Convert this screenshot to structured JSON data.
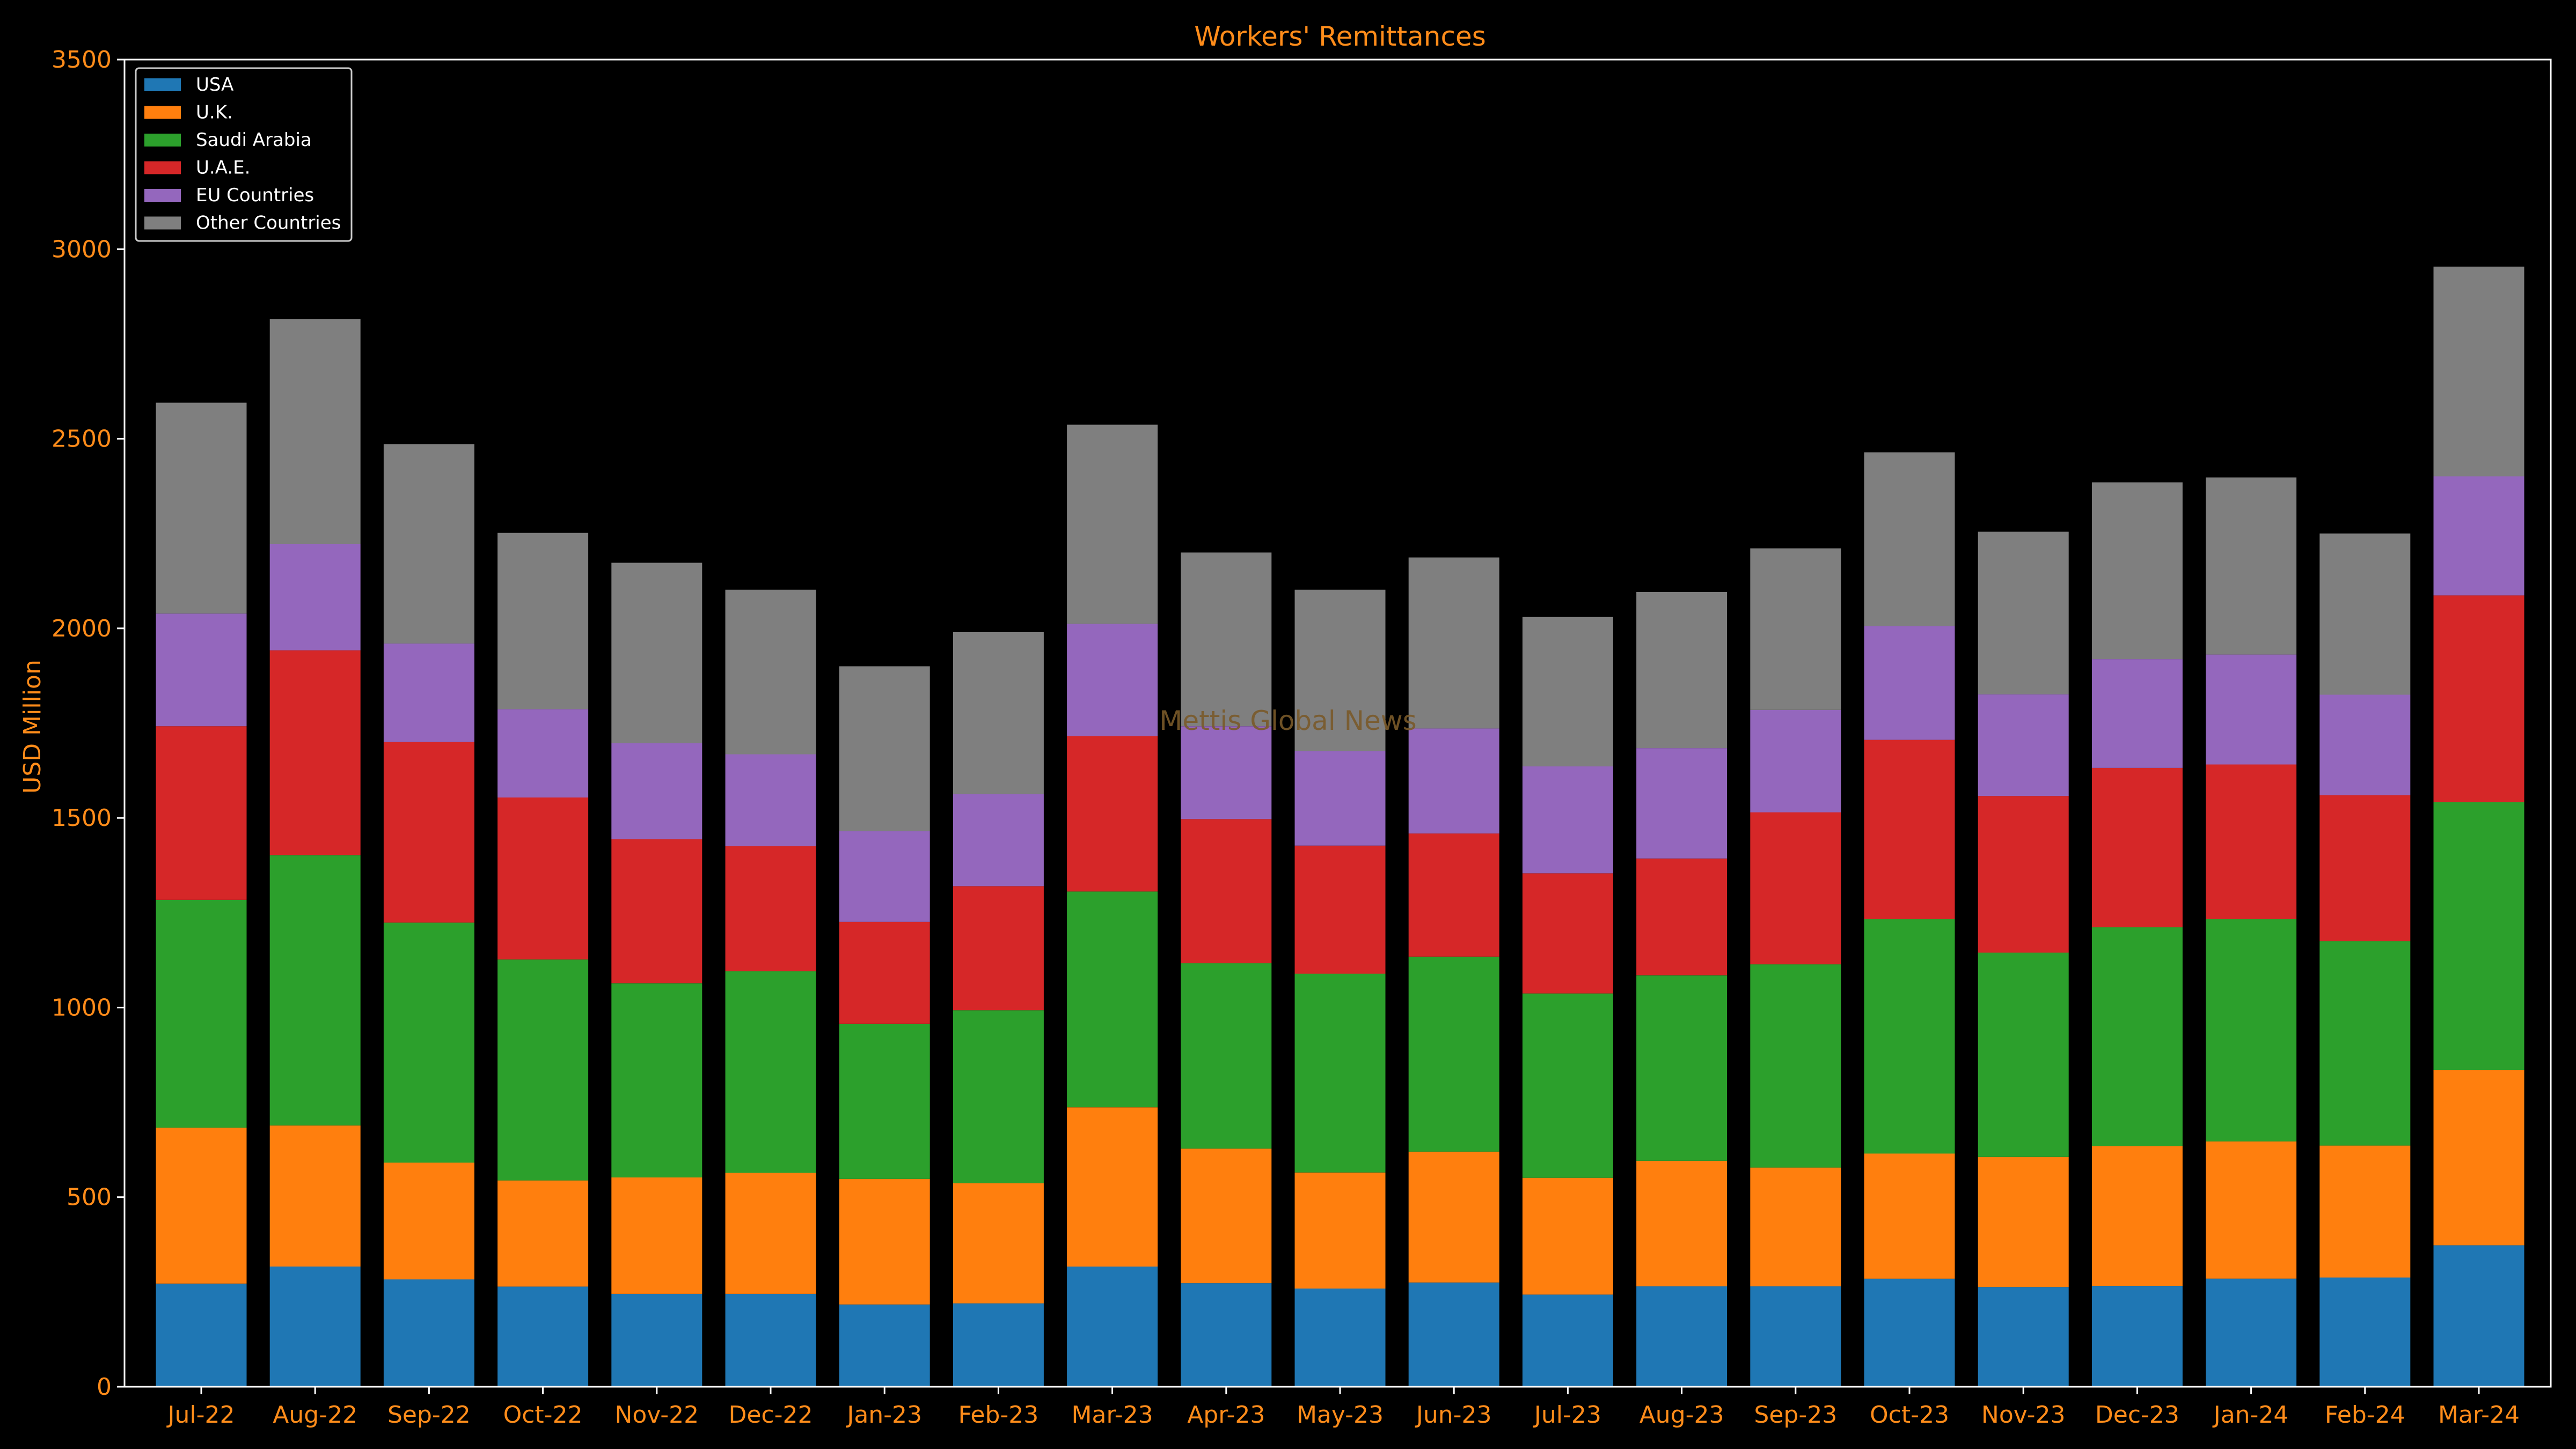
{
  "chart_data": {
    "type": "bar",
    "stacked": true,
    "title": "Workers' Remittances",
    "xlabel": "",
    "ylabel": "USD Million",
    "ylim": [
      0,
      3500
    ],
    "yticks": [
      0,
      500,
      1000,
      1500,
      2000,
      2500,
      3000,
      3500
    ],
    "grid": false,
    "legend_position": "top-left",
    "watermark": "Mettis Global News",
    "categories": [
      "Jul-22",
      "Aug-22",
      "Sep-22",
      "Oct-22",
      "Nov-22",
      "Dec-22",
      "Jan-23",
      "Feb-23",
      "Mar-23",
      "Apr-23",
      "May-23",
      "Jun-23",
      "Jul-23",
      "Aug-23",
      "Sep-23",
      "Oct-23",
      "Nov-23",
      "Dec-23",
      "Jan-24",
      "Feb-24",
      "Mar-24"
    ],
    "series": [
      {
        "name": "USA",
        "color": "#1f77b4",
        "values": [
          272,
          317,
          283,
          264,
          245,
          245,
          217,
          220,
          317,
          273,
          259,
          275,
          243,
          265,
          265,
          285,
          263,
          266,
          285,
          288,
          373
        ]
      },
      {
        "name": "U.K.",
        "color": "#ff7f0e",
        "values": [
          411,
          372,
          308,
          280,
          307,
          319,
          331,
          317,
          420,
          355,
          306,
          345,
          308,
          331,
          313,
          330,
          343,
          369,
          362,
          348,
          462
        ]
      },
      {
        "name": "Saudi Arabia",
        "color": "#2ca02c",
        "values": [
          601,
          713,
          633,
          583,
          512,
          532,
          409,
          456,
          569,
          489,
          524,
          514,
          486,
          489,
          536,
          619,
          539,
          577,
          587,
          539,
          707
        ]
      },
      {
        "name": "U.A.E.",
        "color": "#d62728",
        "values": [
          458,
          540,
          476,
          427,
          380,
          330,
          269,
          327,
          410,
          380,
          338,
          325,
          317,
          308,
          401,
          472,
          413,
          420,
          407,
          385,
          545
        ]
      },
      {
        "name": "EU Countries",
        "color": "#9467bd",
        "values": [
          297,
          280,
          260,
          233,
          253,
          242,
          240,
          243,
          296,
          245,
          250,
          277,
          282,
          291,
          270,
          300,
          268,
          287,
          290,
          265,
          314
        ]
      },
      {
        "name": "Other Countries",
        "color": "#7f7f7f",
        "values": [
          556,
          594,
          526,
          465,
          476,
          434,
          434,
          427,
          525,
          458,
          425,
          451,
          394,
          412,
          426,
          458,
          429,
          466,
          467,
          425,
          553
        ]
      }
    ]
  }
}
